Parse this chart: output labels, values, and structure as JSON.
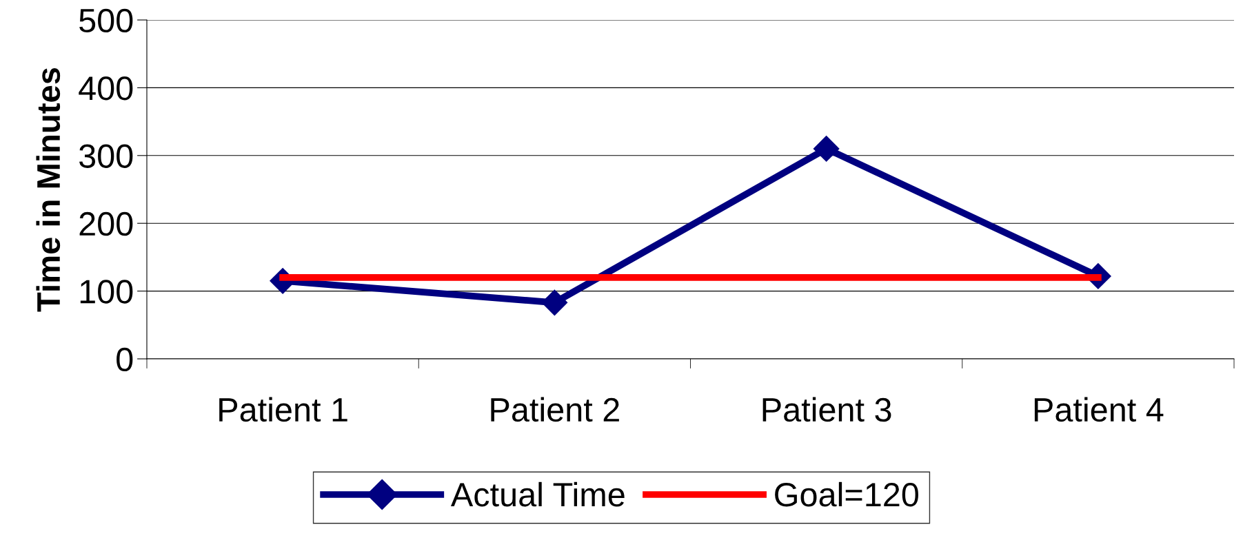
{
  "chart_data": {
    "type": "line",
    "ylabel": "Time in Minutes",
    "categories": [
      "Patient 1",
      "Patient 2",
      "Patient 3",
      "Patient 4"
    ],
    "series": [
      {
        "name": "Actual Time",
        "color": "#000080",
        "values": [
          115,
          83,
          310,
          122
        ],
        "marker": "diamond"
      },
      {
        "name": "Goal=120",
        "color": "#ff0000",
        "values": [
          120,
          120,
          120,
          120
        ],
        "marker": "none"
      }
    ],
    "ylim": [
      0,
      500
    ],
    "yticks": [
      0,
      100,
      200,
      300,
      400,
      500
    ],
    "grid": "y",
    "legend": "bottom"
  }
}
